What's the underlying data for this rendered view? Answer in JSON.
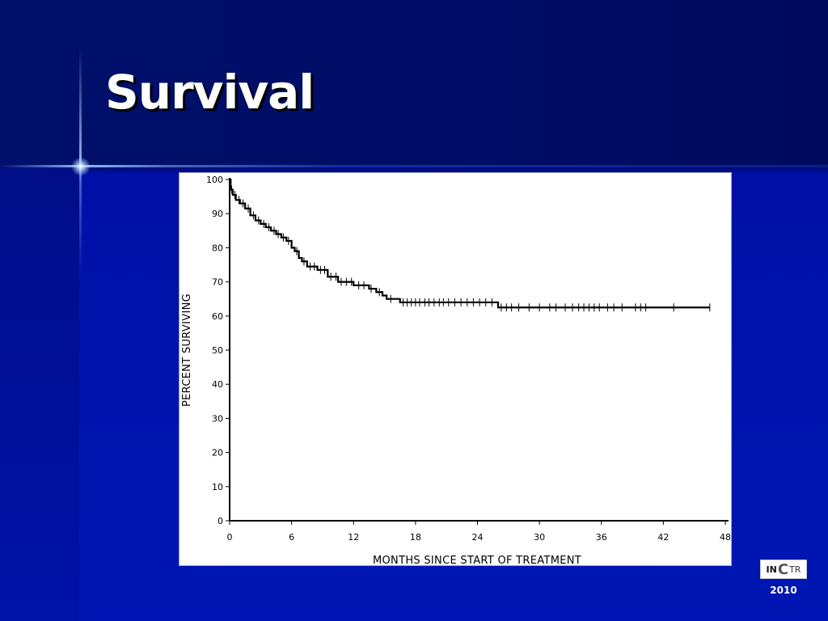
{
  "slide": {
    "title": "Survival",
    "logo_text": {
      "part1": "IN",
      "part2": "C",
      "part3": "TR"
    },
    "year": "2010"
  },
  "colors": {
    "background": "#0014b0",
    "title_text": "#ffffff",
    "chart_background": "#ffffff",
    "curve": "#000000"
  },
  "chart_data": {
    "type": "line",
    "title": "",
    "xlabel": "MONTHS SINCE START OF TREATMENT",
    "ylabel": "PERCENT SURVIVING",
    "xlim": [
      0,
      48
    ],
    "ylim": [
      0,
      100
    ],
    "xticks": [
      0,
      6,
      12,
      18,
      24,
      30,
      36,
      42,
      48
    ],
    "yticks": [
      0,
      10,
      20,
      30,
      40,
      50,
      60,
      70,
      80,
      90,
      100
    ],
    "grid": false,
    "series": [
      {
        "step": true,
        "x": [
          0,
          0.1,
          0.3,
          0.6,
          1.0,
          1.5,
          2.0,
          2.5,
          3.0,
          3.5,
          4.0,
          4.5,
          5.0,
          5.5,
          6.0,
          6.3,
          6.7,
          7.0,
          7.5,
          8.5,
          9.5,
          10.5,
          12.0,
          13.5,
          14.2,
          14.8,
          15.2,
          16.5,
          26.0,
          46.5
        ],
        "y": [
          100,
          97,
          95.5,
          94,
          93,
          91.5,
          89.5,
          88,
          87,
          86,
          85,
          84,
          83,
          82,
          80,
          79,
          77,
          76,
          74.5,
          73.5,
          71.5,
          70,
          69,
          68,
          67,
          66,
          65,
          64,
          62.5,
          62.5
        ]
      }
    ],
    "censor_marks_x": [
      0.2,
      0.5,
      0.9,
      1.3,
      1.8,
      2.3,
      2.8,
      3.3,
      3.8,
      4.3,
      4.7,
      5.2,
      5.7,
      6.5,
      7.2,
      7.8,
      8.2,
      8.8,
      9.2,
      9.8,
      10.3,
      10.8,
      11.3,
      11.8,
      12.5,
      13.0,
      13.7,
      14.5,
      15.6,
      16.8,
      17.2,
      17.6,
      18.0,
      18.4,
      18.9,
      19.3,
      19.8,
      20.3,
      20.7,
      21.2,
      21.8,
      22.4,
      23.0,
      23.6,
      24.2,
      24.8,
      25.4,
      26.3,
      26.8,
      27.3,
      28.0,
      29.0,
      30.0,
      31.0,
      31.6,
      32.5,
      33.2,
      33.8,
      34.3,
      34.8,
      35.3,
      35.8,
      36.6,
      37.2,
      38.0,
      39.3,
      39.8,
      40.3,
      43.0,
      46.5
    ]
  }
}
